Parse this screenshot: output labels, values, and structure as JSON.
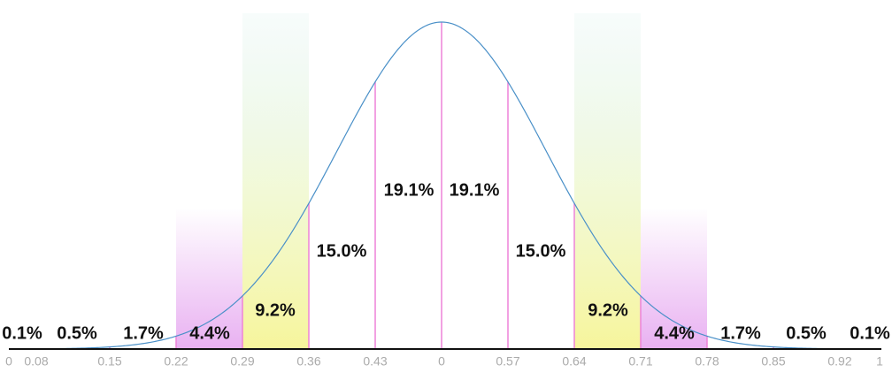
{
  "chart_data": {
    "type": "bell",
    "values": [
      0.1,
      0.5,
      1.7,
      4.4,
      9.2,
      15.0,
      19.1,
      19.1,
      15.0,
      9.2,
      4.4,
      1.7,
      0.5,
      0.1
    ],
    "value_labels": [
      "0.1%",
      "0.5%",
      "1.7%",
      "4.4%",
      "9.2%",
      "15.0%",
      "19.1%",
      "19.1%",
      "15.0%",
      "9.2%",
      "4.4%",
      "1.7%",
      "0.5%",
      "0.1%"
    ],
    "fills": [
      "none",
      "none",
      "none",
      "#e6a8f0",
      "#f7f59c",
      "none",
      "none",
      "none",
      "none",
      "#f7f59c",
      "#e6a8f0",
      "none",
      "none",
      "none"
    ],
    "x_labels": [
      "0",
      "0.08",
      "0.15",
      "0.22",
      "0.29",
      "0.36",
      "0.43",
      "0",
      "0.57",
      "0.64",
      "0.71",
      "0.78",
      "0.85",
      "0.92",
      "1"
    ],
    "curve_color": "#4a90c8",
    "divider_color": "#ee82d8"
  }
}
